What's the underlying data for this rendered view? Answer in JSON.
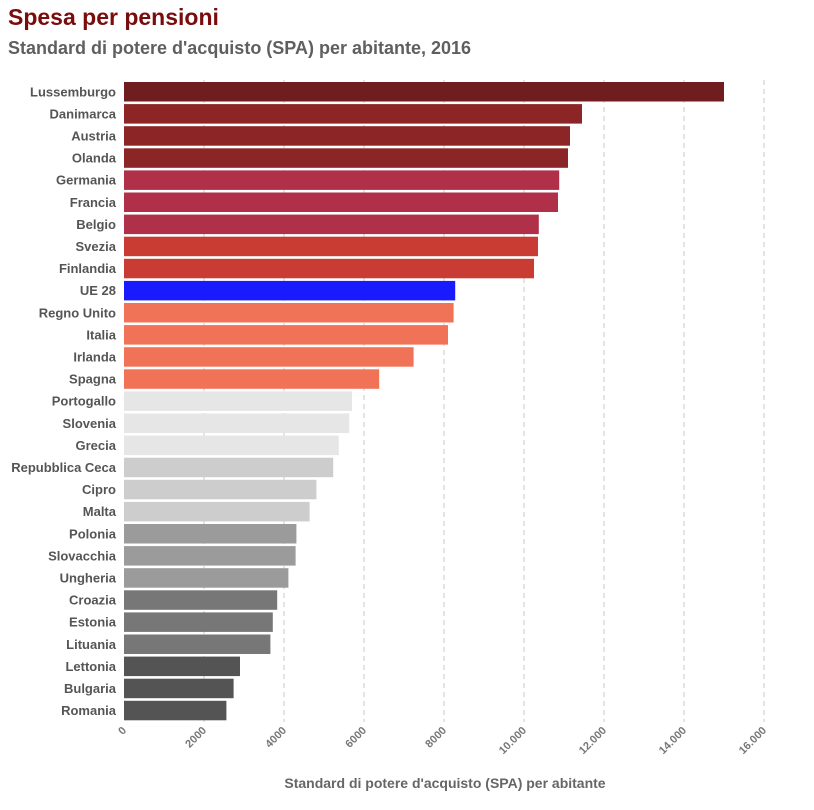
{
  "title": "Spesa per pensioni",
  "subtitle": "Standard di potere d'acquisto (SPA) per abitante, 2016",
  "chart_data": {
    "type": "bar",
    "orientation": "horizontal",
    "xlabel": "Standard di potere d'acquisto (SPA) per abitante",
    "xlim": [
      0,
      16000
    ],
    "x_ticks": [
      "0",
      "2000",
      "4000",
      "6000",
      "8000",
      "10.000",
      "12.000",
      "14.000",
      "16.000"
    ],
    "x_tick_values": [
      0,
      2000,
      4000,
      6000,
      8000,
      10000,
      12000,
      14000,
      16000
    ],
    "grid": "vertical dashed",
    "categories": [
      "Lussemburgo",
      "Danimarca",
      "Austria",
      "Olanda",
      "Germania",
      "Francia",
      "Belgio",
      "Svezia",
      "Finlandia",
      "UE 28",
      "Regno Unito",
      "Italia",
      "Irlanda",
      "Spagna",
      "Portogallo",
      "Slovenia",
      "Grecia",
      "Repubblica Ceca",
      "Cipro",
      "Malta",
      "Polonia",
      "Slovacchia",
      "Ungheria",
      "Croazia",
      "Estonia",
      "Lituania",
      "Lettonia",
      "Bulgaria",
      "Romania"
    ],
    "values": [
      15000,
      11450,
      11150,
      11100,
      10880,
      10850,
      10370,
      10350,
      10250,
      8280,
      8240,
      8100,
      7240,
      6380,
      5700,
      5630,
      5370,
      5230,
      4810,
      4640,
      4310,
      4290,
      4110,
      3830,
      3720,
      3660,
      2900,
      2740,
      2560
    ],
    "colors": [
      "#701d1f",
      "#8b2526",
      "#8b2526",
      "#8b2526",
      "#b0304a",
      "#b0304a",
      "#b0304a",
      "#c83c33",
      "#c83c33",
      "#1a1aff",
      "#f07358",
      "#f07358",
      "#f07358",
      "#f07358",
      "#e6e6e6",
      "#e6e6e6",
      "#e6e6e6",
      "#cdcdcd",
      "#cdcdcd",
      "#cdcdcd",
      "#9b9b9b",
      "#9b9b9b",
      "#9b9b9b",
      "#777777",
      "#777777",
      "#777777",
      "#545454",
      "#545454",
      "#545454"
    ]
  }
}
